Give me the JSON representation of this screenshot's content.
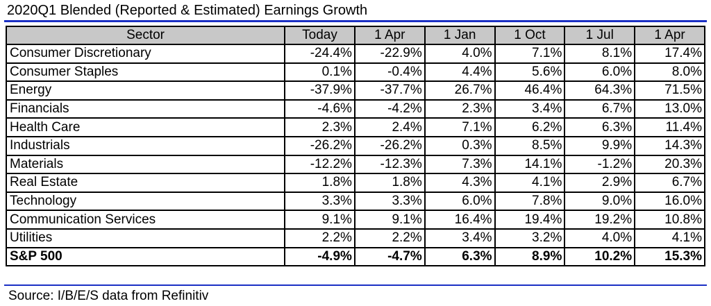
{
  "title": "2020Q1 Blended (Reported & Estimated) Earnings Growth",
  "accent_color": "#1a2fc4",
  "header_fill": "#c8c8c8",
  "table": {
    "headers": [
      "Sector",
      "Today",
      "1 Apr",
      "1 Jan",
      "1 Oct",
      "1 Jul",
      "1 Apr"
    ],
    "rows": [
      [
        "Consumer Discretionary",
        "-24.4%",
        "-22.9%",
        "4.0%",
        "7.1%",
        "8.1%",
        "17.4%"
      ],
      [
        "Consumer Staples",
        "0.1%",
        "-0.4%",
        "4.4%",
        "5.6%",
        "6.0%",
        "8.0%"
      ],
      [
        "Energy",
        "-37.9%",
        "-37.7%",
        "26.7%",
        "46.4%",
        "64.3%",
        "71.5%"
      ],
      [
        "Financials",
        "-4.6%",
        "-4.2%",
        "2.3%",
        "3.4%",
        "6.7%",
        "13.0%"
      ],
      [
        "Health Care",
        "2.3%",
        "2.4%",
        "7.1%",
        "6.2%",
        "6.3%",
        "11.4%"
      ],
      [
        "Industrials",
        "-26.2%",
        "-26.2%",
        "0.3%",
        "8.5%",
        "9.9%",
        "14.3%"
      ],
      [
        "Materials",
        "-12.2%",
        "-12.3%",
        "7.3%",
        "14.1%",
        "-1.2%",
        "20.3%"
      ],
      [
        "Real Estate",
        "1.8%",
        "1.8%",
        "4.3%",
        "4.1%",
        "2.9%",
        "6.7%"
      ],
      [
        "Technology",
        "3.3%",
        "3.3%",
        "6.0%",
        "7.8%",
        "9.0%",
        "16.0%"
      ],
      [
        "Communication Services",
        "9.1%",
        "9.1%",
        "16.4%",
        "19.4%",
        "19.2%",
        "10.8%"
      ],
      [
        "Utilities",
        "2.2%",
        "2.2%",
        "3.4%",
        "3.2%",
        "4.0%",
        "4.1%"
      ]
    ],
    "total": [
      "S&P 500",
      "-4.9%",
      "-4.7%",
      "6.3%",
      "8.9%",
      "10.2%",
      "15.3%"
    ]
  },
  "source": "Source: I/B/E/S data from Refinitiv"
}
